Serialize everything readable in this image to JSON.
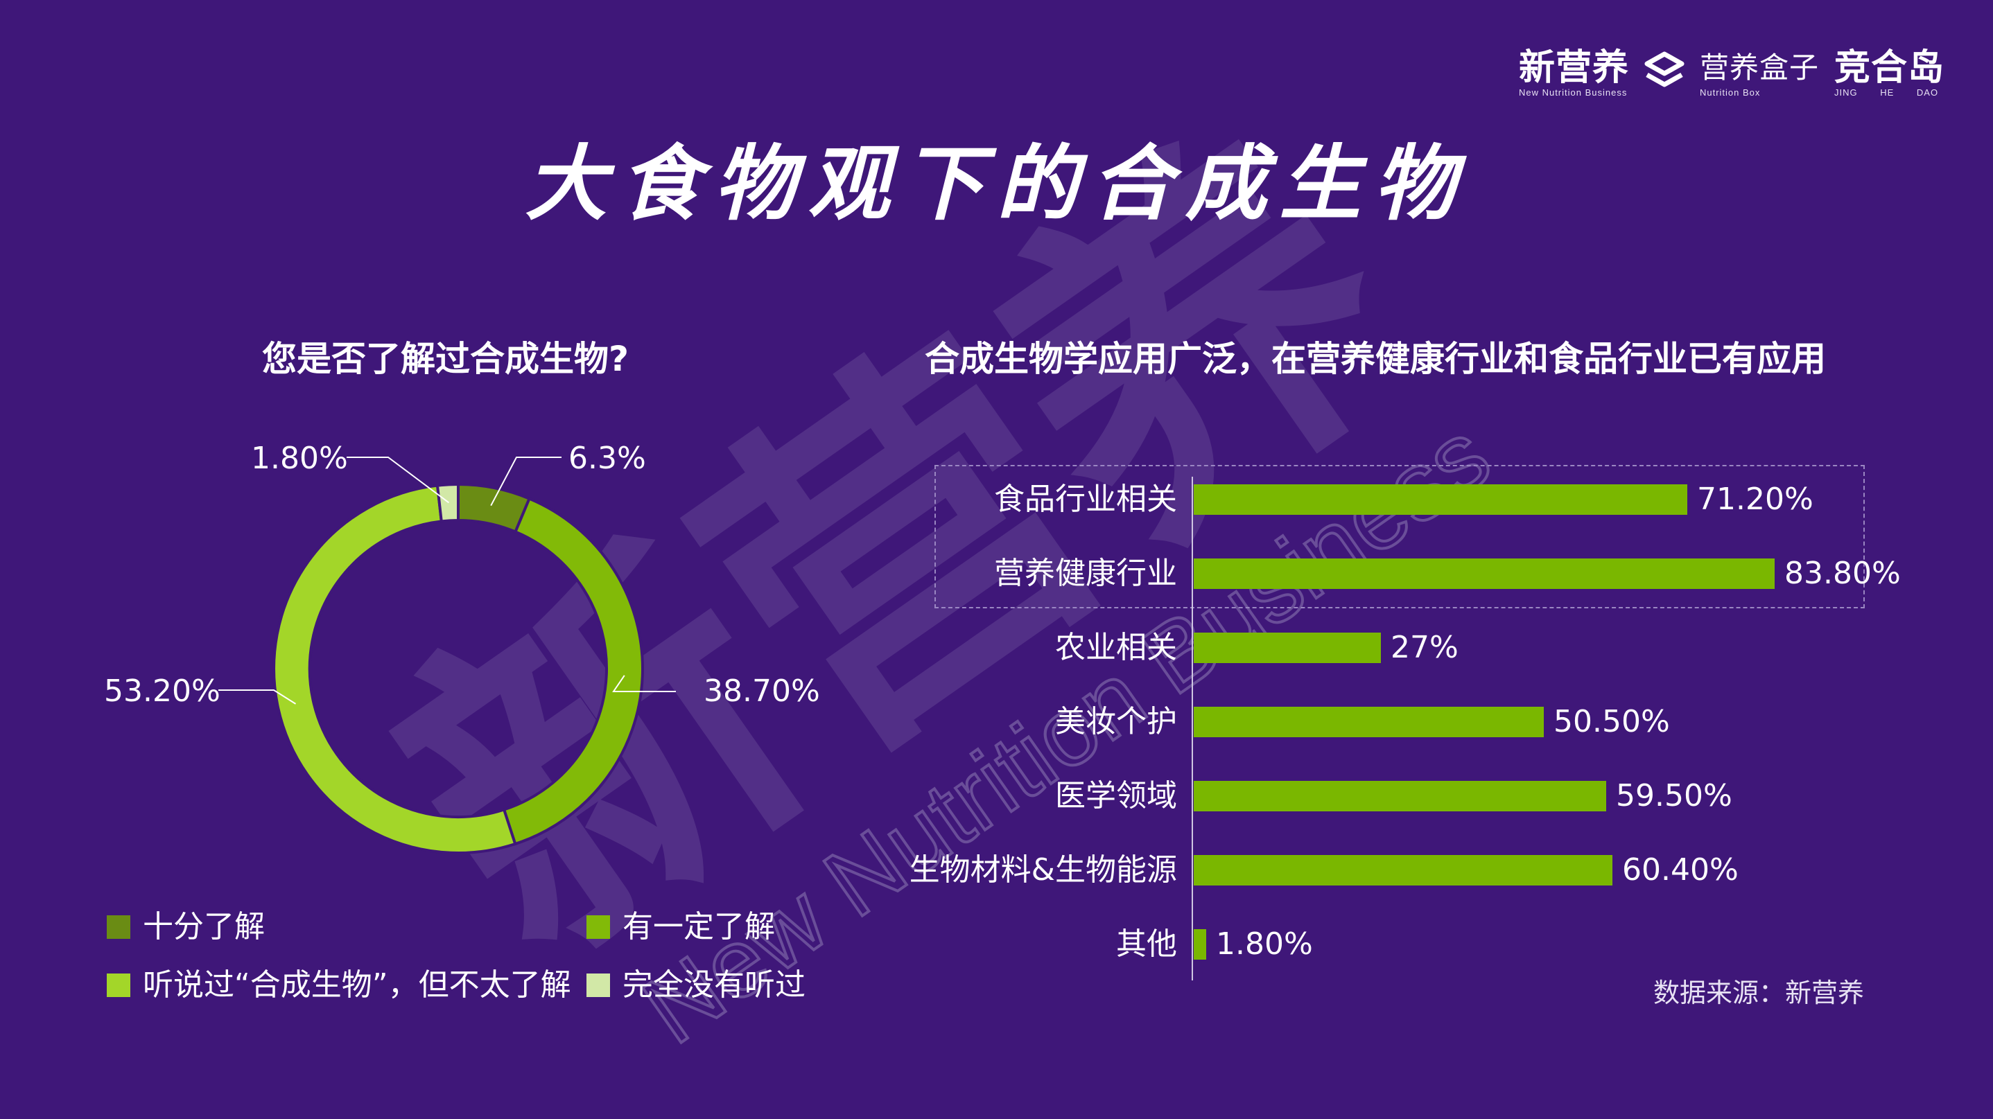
{
  "brand": {
    "logo1_name": "新营养",
    "logo1_sub": "New Nutrition Business",
    "logo2_name": "营养盒子",
    "logo2_sub": "Nutrition Box",
    "logo3_name": "竞合岛",
    "logo3_sub": "JING HE DAO",
    "watermark_text": "新营养",
    "watermark_sub": "New Nutrition Business"
  },
  "title": "大食物观下的合成生物",
  "source": "数据来源：新营养",
  "colors": {
    "background": "#3f1779",
    "deep_green": "#6a8c14",
    "mid_green": "#82ba08",
    "bright_green": "#a3d629",
    "pale_green": "#d2e8a7",
    "bar_green": "#7ab700"
  },
  "chart_data": [
    {
      "type": "pie",
      "variant": "donut",
      "title": "您是否了解过合成生物?",
      "slices": [
        {
          "label": "十分了解",
          "value": 6.3,
          "display": "6.3%",
          "color": "#6a8c14"
        },
        {
          "label": "有一定了解",
          "value": 38.7,
          "display": "38.70%",
          "color": "#82ba08"
        },
        {
          "label": "听说过“合成生物”，但不太了解",
          "value": 53.2,
          "display": "53.20%",
          "color": "#a3d629"
        },
        {
          "label": "完全没有听过",
          "value": 1.8,
          "display": "1.80%",
          "color": "#d2e8a7"
        }
      ],
      "legend_position": "bottom"
    },
    {
      "type": "bar",
      "orientation": "horizontal",
      "title": "合成生物学应用广泛，在营养健康行业和食品行业已有应用",
      "categories": [
        "食品行业相关",
        "营养健康行业",
        "农业相关",
        "美妆个护",
        "医学领域",
        "生物材料&生物能源",
        "其他"
      ],
      "values": [
        71.2,
        83.8,
        27,
        50.5,
        59.5,
        60.4,
        1.8
      ],
      "value_labels": [
        "71.20%",
        "83.80%",
        "27%",
        "50.50%",
        "59.50%",
        "60.40%",
        "1.80%"
      ],
      "highlighted_categories": [
        "食品行业相关",
        "营养健康行业"
      ],
      "xlim": [
        0,
        100
      ],
      "grid": false
    }
  ]
}
